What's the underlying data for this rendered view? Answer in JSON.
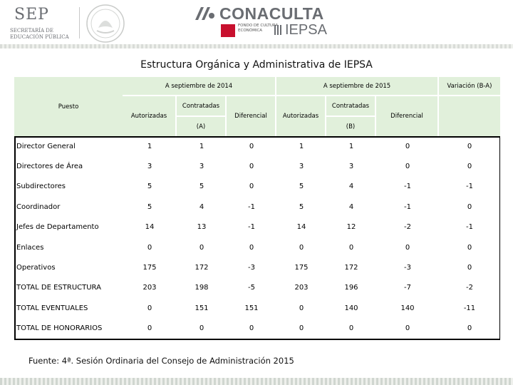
{
  "header": {
    "sep": {
      "name": "SEP",
      "line1": "SECRETARÍA DE",
      "line2": "EDUCACIÓN PÚBLICA"
    },
    "conaculta": {
      "name": "CONACULTA",
      "fondo_text": "FONDO DE CULTURA ECONÓMICA",
      "iepsa": "IEPSA"
    }
  },
  "title": "Estructura Orgánica y Administrativa de IEPSA",
  "table": {
    "headers": {
      "puesto": "Puesto",
      "sep2014": "A septiembre de 2014",
      "sep2015": "A septiembre de 2015",
      "variacion": "Variación (B-A)",
      "autorizadas_a": "Autorizadas",
      "contratadas_a": "Contratadas",
      "contratadas_a_tag": "(A)",
      "diferencial_a": "Diferencial",
      "autorizadas_b": "Autorizadas",
      "contratadas_b": "Contratadas",
      "contratadas_b_tag": "(B)",
      "diferencial_b": "Diferencial"
    },
    "rows": [
      {
        "label": "Director General",
        "values": [
          "1",
          "1",
          "0",
          "1",
          "1",
          "0",
          "0"
        ]
      },
      {
        "label": "Directores de Área",
        "values": [
          "3",
          "3",
          "0",
          "3",
          "3",
          "0",
          "0"
        ]
      },
      {
        "label": "Subdirectores",
        "values": [
          "5",
          "5",
          "0",
          "5",
          "4",
          "-1",
          "-1"
        ]
      },
      {
        "label": "Coordinador",
        "values": [
          "5",
          "4",
          "-1",
          "5",
          "4",
          "-1",
          "0"
        ]
      },
      {
        "label": "Jefes de Departamento",
        "values": [
          "14",
          "13",
          "-1",
          "14",
          "12",
          "-2",
          "-1"
        ]
      },
      {
        "label": "Enlaces",
        "values": [
          "0",
          "0",
          "0",
          "0",
          "0",
          "0",
          "0"
        ]
      },
      {
        "label": "Operativos",
        "values": [
          "175",
          "172",
          "-3",
          "175",
          "172",
          "-3",
          "0"
        ]
      },
      {
        "label": "TOTAL DE ESTRUCTURA",
        "values": [
          "203",
          "198",
          "-5",
          "203",
          "196",
          "-7",
          "-2"
        ]
      },
      {
        "label": "TOTAL EVENTUALES",
        "values": [
          "0",
          "151",
          "151",
          "0",
          "140",
          "140",
          "-11"
        ]
      },
      {
        "label": "TOTAL DE HONORARIOS",
        "values": [
          "0",
          "0",
          "0",
          "0",
          "0",
          "0",
          "0"
        ]
      }
    ]
  },
  "footer": "Fuente: 4ª. Sesión Ordinaria del Consejo de Administración 2015",
  "colors": {
    "header_bg": "#e1f0db",
    "accent_red": "#c8102e",
    "logo_gray": "#6a6d72"
  }
}
